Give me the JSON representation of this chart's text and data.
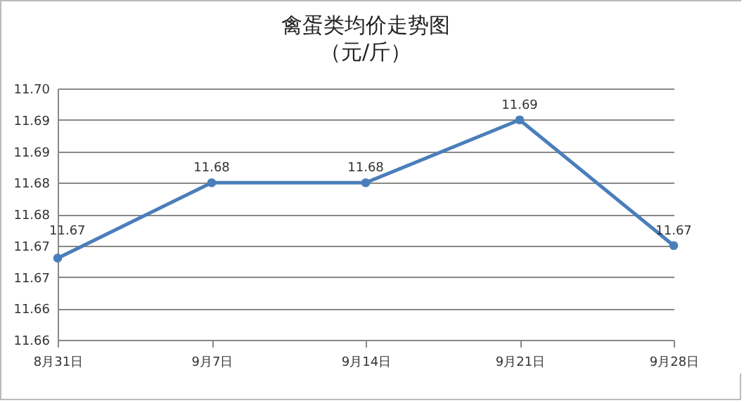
{
  "chart_data": {
    "type": "line",
    "title": "禽蛋类均价走势图",
    "subtitle": "（元/斤）",
    "categories": [
      "8月31日",
      "9月7日",
      "9月14日",
      "9月21日",
      "9月28日"
    ],
    "series": [
      {
        "color": "#4a7ebb",
        "values": [
          11.673,
          11.685,
          11.685,
          11.695,
          11.675
        ],
        "value_labels": [
          "11.67",
          "11.68",
          "11.68",
          "11.69",
          "11.67"
        ]
      }
    ],
    "ylim": [
      11.66,
      11.7
    ],
    "yticks": [
      {
        "value": 11.66,
        "label": "11.66"
      },
      {
        "value": 11.665,
        "label": "11.66"
      },
      {
        "value": 11.67,
        "label": "11.67"
      },
      {
        "value": 11.675,
        "label": "11.67"
      },
      {
        "value": 11.68,
        "label": "11.68"
      },
      {
        "value": 11.685,
        "label": "11.68"
      },
      {
        "value": 11.69,
        "label": "11.69"
      },
      {
        "value": 11.695,
        "label": "11.69"
      },
      {
        "value": 11.7,
        "label": "11.70"
      }
    ],
    "grid": "y",
    "marker": "circle",
    "line_style": "solid",
    "legend": false
  }
}
